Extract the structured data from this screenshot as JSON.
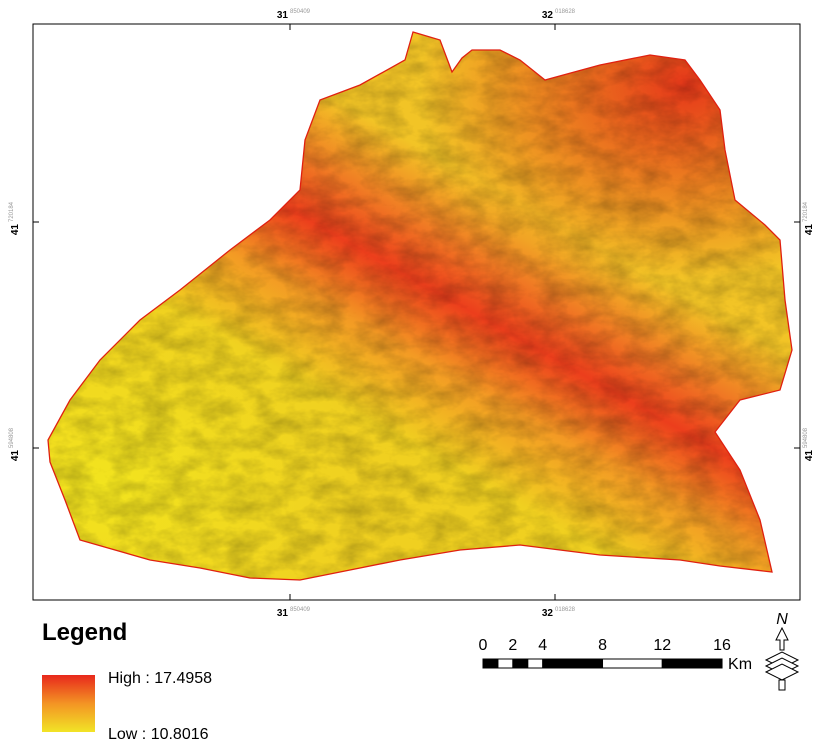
{
  "map": {
    "grid_labels": {
      "top": [
        {
          "major": "31",
          "minor": "850409"
        },
        {
          "major": "32",
          "minor": "018628"
        }
      ],
      "bottom": [
        {
          "major": "31",
          "minor": "850409"
        },
        {
          "major": "32",
          "minor": "018628"
        }
      ],
      "left": [
        {
          "major": "41",
          "minor": "720184"
        },
        {
          "major": "41",
          "minor": "594808"
        }
      ],
      "right": [
        {
          "major": "41",
          "minor": "720184"
        },
        {
          "major": "41",
          "minor": "594808"
        }
      ]
    },
    "legend": {
      "title": "Legend",
      "high_label": "High : 17.4958",
      "low_label": "Low : 10.8016"
    },
    "scale_bar": {
      "ticks": [
        0,
        2,
        4,
        8,
        12,
        16
      ],
      "unit": "Km"
    },
    "north_arrow": {
      "label": "N"
    }
  }
}
